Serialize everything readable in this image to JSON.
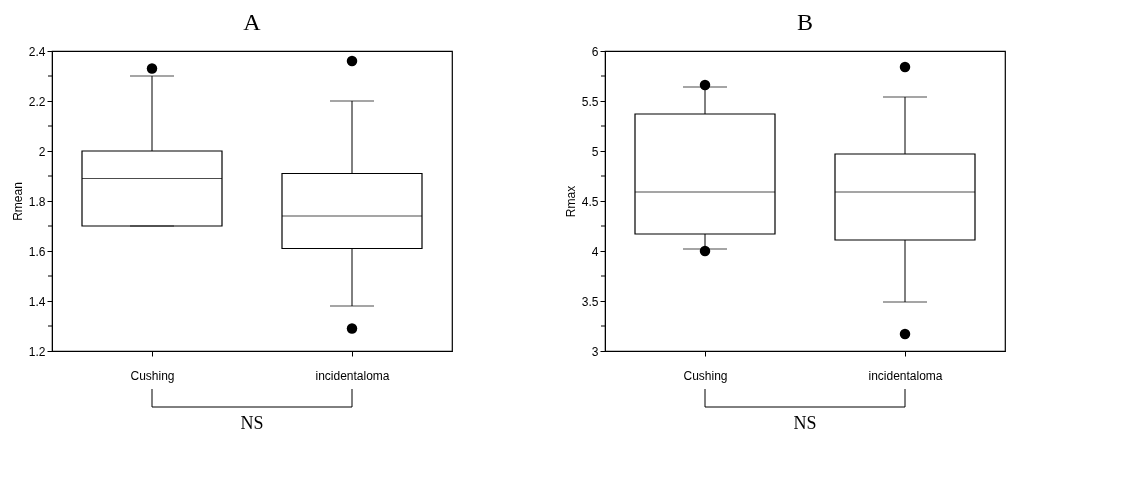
{
  "chart_data": [
    {
      "type": "box",
      "title": "A",
      "ylabel": "Rmean",
      "categories": [
        "Cushing",
        "incidentaloma"
      ],
      "boxes": [
        {
          "low": 1.7,
          "q1": 1.7,
          "median": 1.89,
          "q3": 2.0,
          "high": 2.3,
          "outliers": [
            2.33
          ]
        },
        {
          "low": 1.38,
          "q1": 1.61,
          "median": 1.74,
          "q3": 1.91,
          "high": 2.2,
          "outliers": [
            2.36,
            1.29
          ]
        }
      ],
      "ylim": [
        1.2,
        2.4
      ],
      "yticks": [
        "1.2",
        {
          "value": 1.3,
          "label": null
        },
        1.4,
        {
          "value": 1.5,
          "label": null
        },
        1.6,
        {
          "value": 1.7,
          "label": null
        },
        1.8,
        {
          "value": 1.9,
          "label": null
        },
        2,
        {
          "value": 2.1,
          "label": null
        },
        2.2,
        {
          "value": 2.3,
          "label": null
        },
        2.4
      ],
      "grid": false,
      "annotations": [
        "NS"
      ]
    },
    {
      "type": "box",
      "title": "B",
      "ylabel": "Rmax",
      "categories": [
        "Cushing",
        "incidentaloma"
      ],
      "boxes": [
        {
          "low": 4.02,
          "q1": 4.17,
          "median": 4.59,
          "q3": 5.37,
          "high": 5.64,
          "outliers": [
            5.66,
            4.0
          ]
        },
        {
          "low": 3.49,
          "q1": 4.11,
          "median": 4.59,
          "q3": 4.97,
          "high": 5.54,
          "outliers": [
            5.84,
            3.17
          ]
        }
      ],
      "ylim": [
        3,
        6
      ],
      "yticks": [
        3,
        {
          "value": 3.25,
          "label": null
        },
        3.5,
        {
          "value": 3.75,
          "label": null
        },
        4,
        {
          "value": 4.25,
          "label": null
        },
        4.5,
        {
          "value": 4.75,
          "label": null
        },
        5,
        {
          "value": 5.25,
          "label": null
        },
        5.5,
        {
          "value": 5.75,
          "label": null
        },
        6
      ],
      "grid": false,
      "annotations": [
        "NS"
      ]
    }
  ]
}
